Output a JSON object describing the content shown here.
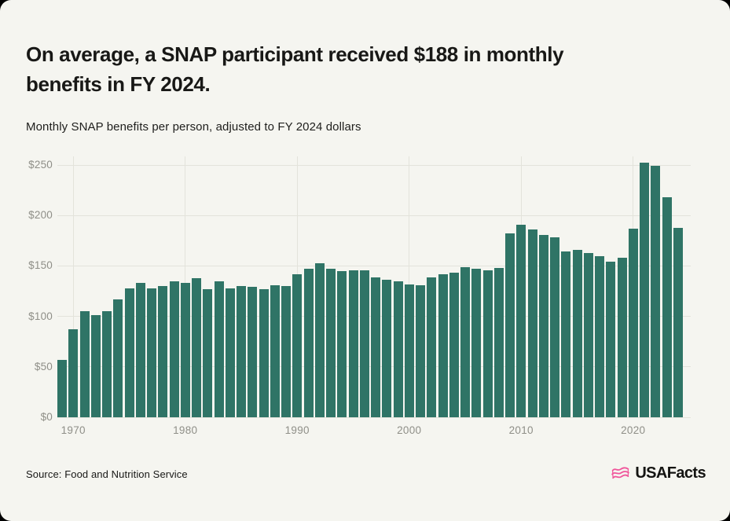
{
  "card": {
    "background": "#f5f5f0",
    "page_background": "#000000"
  },
  "header": {
    "title_line1": "On average, a SNAP participant received $188 in monthly",
    "title_line2": "benefits in FY 2024.",
    "subtitle": "Monthly SNAP benefits per person, adjusted to FY 2024 dollars"
  },
  "footer": {
    "source": "Source: Food and Nutrition Service",
    "logo_text": "USAFacts",
    "logo_icon": "usafacts-flag-icon",
    "logo_icon_color": "#f0569b"
  },
  "chart_data": {
    "type": "bar",
    "title": "Monthly SNAP benefits per person, adjusted to FY 2024 dollars",
    "xlabel": "",
    "ylabel": "",
    "ylim": [
      0,
      250
    ],
    "grid": true,
    "legend": "none",
    "bar_color": "#2f7466",
    "ytick_values": [
      0,
      50,
      100,
      150,
      200,
      250
    ],
    "ytick_labels": [
      "$0",
      "$50",
      "$100",
      "$150",
      "$200",
      "$250"
    ],
    "xtick_years": [
      1970,
      1980,
      1990,
      2000,
      2010,
      2020
    ],
    "years": [
      1969,
      1970,
      1971,
      1972,
      1973,
      1974,
      1975,
      1976,
      1977,
      1978,
      1979,
      1980,
      1981,
      1982,
      1983,
      1984,
      1985,
      1986,
      1987,
      1988,
      1989,
      1990,
      1991,
      1992,
      1993,
      1994,
      1995,
      1996,
      1997,
      1998,
      1999,
      2000,
      2001,
      2002,
      2003,
      2004,
      2005,
      2006,
      2007,
      2008,
      2009,
      2010,
      2011,
      2012,
      2013,
      2014,
      2015,
      2016,
      2017,
      2018,
      2019,
      2020,
      2021,
      2022,
      2023,
      2024
    ],
    "values": [
      57,
      87,
      105,
      101,
      105,
      117,
      128,
      133,
      128,
      130,
      135,
      133,
      138,
      127,
      135,
      128,
      130,
      129,
      127,
      131,
      130,
      142,
      147,
      153,
      147,
      145,
      146,
      146,
      139,
      136,
      135,
      132,
      131,
      139,
      142,
      143,
      149,
      147,
      146,
      148,
      182,
      191,
      186,
      181,
      178,
      164,
      166,
      163,
      160,
      154,
      158,
      187,
      252,
      249,
      218,
      188
    ]
  }
}
